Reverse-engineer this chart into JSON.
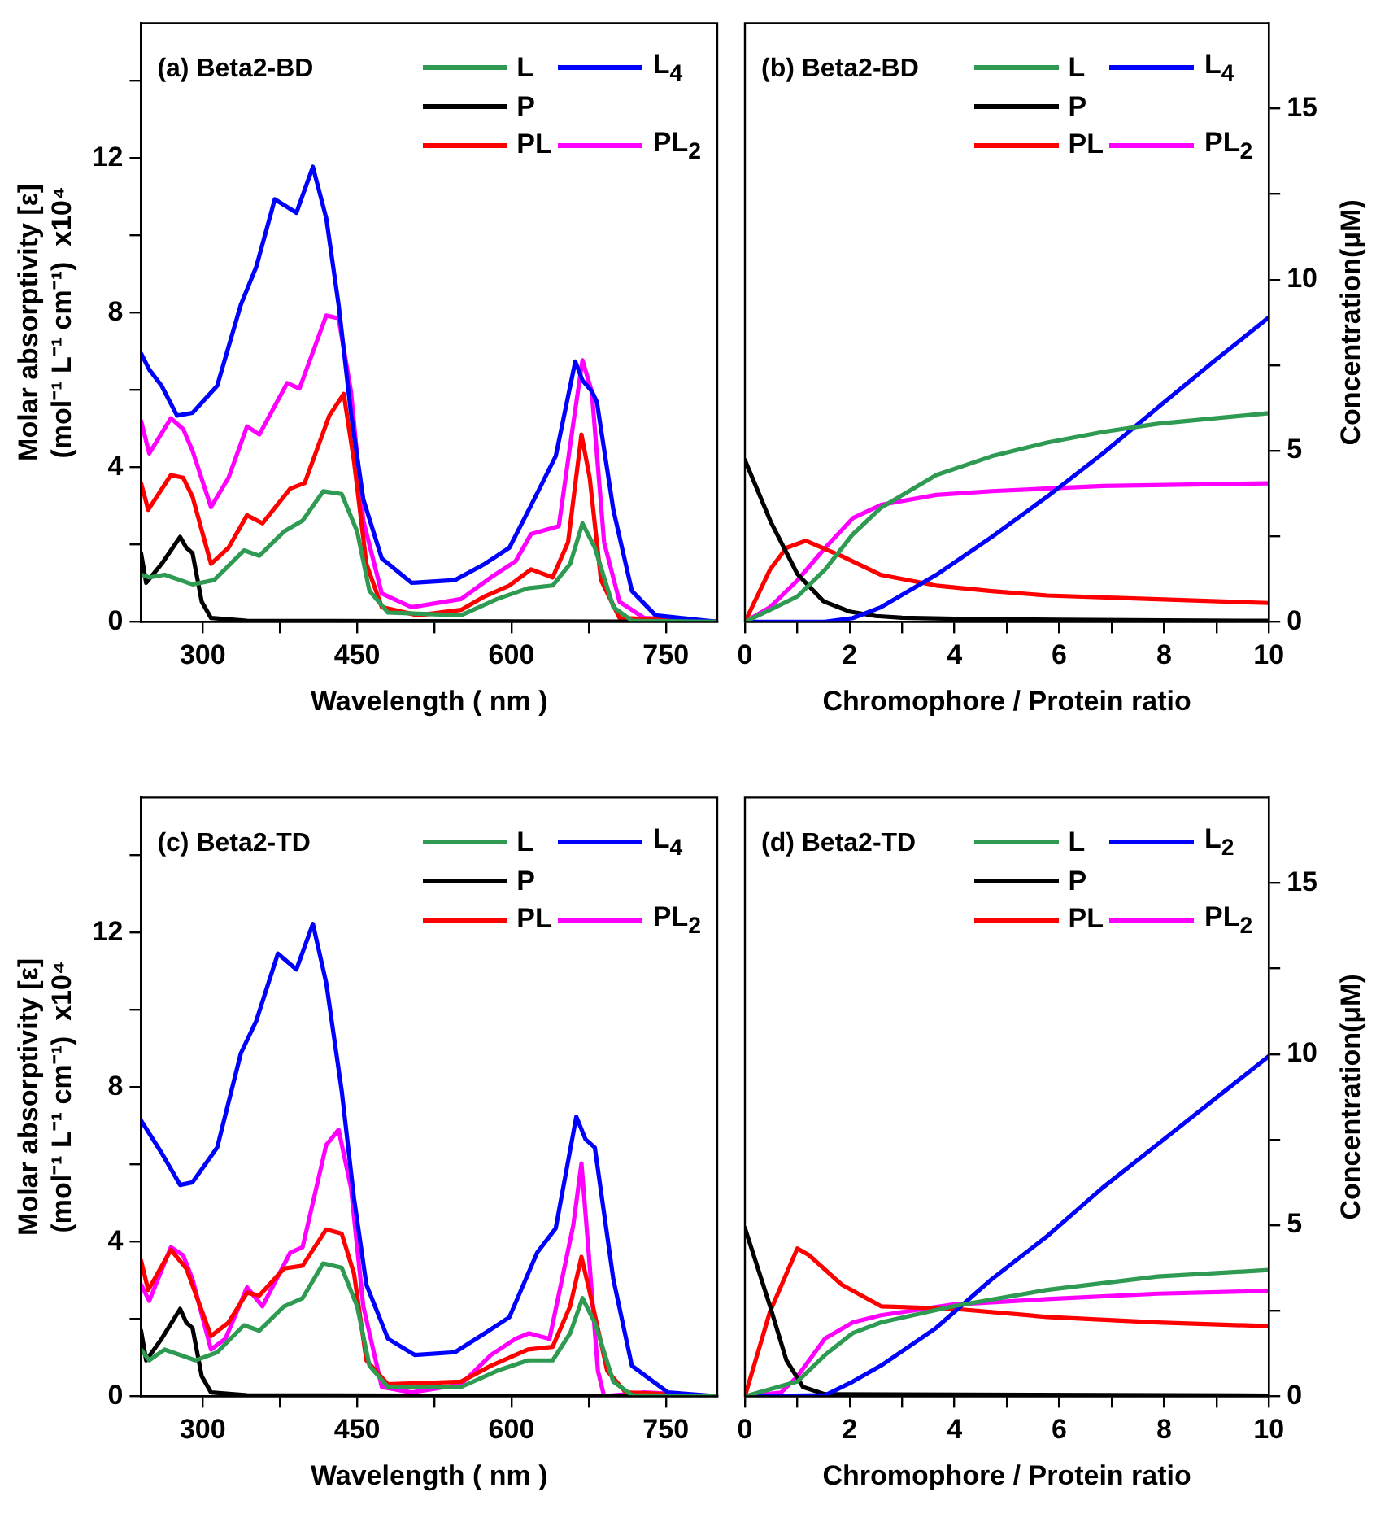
{
  "chart_data": [
    {
      "type": "line",
      "title": "(a) Beta2-BD",
      "xlabel": "Wavelength ( nm )",
      "ylabel": "Molar absorptivity [ε]\n(mol⁻¹ L⁻¹ cm⁻¹)  x10⁴",
      "legend": "top right",
      "xlim": [
        240,
        800
      ],
      "xticks": [
        300,
        {
          "value": 375,
          "label": null
        },
        450,
        {
          "value": 525,
          "label": null
        },
        600,
        {
          "value": 675,
          "label": null
        },
        750
      ],
      "ylim": [
        0,
        15.5
      ],
      "yticks": [
        0,
        {
          "value": 2,
          "label": null
        },
        4,
        {
          "value": 6,
          "label": null
        },
        8,
        {
          "value": 10,
          "label": null
        },
        12,
        {
          "value": 14,
          "label": null
        }
      ],
      "series": [
        {
          "name": "L",
          "color": "#2e9a52",
          "x": [
            240,
            248,
            263,
            290,
            311,
            340,
            355,
            379,
            397,
            417,
            435,
            450,
            462,
            480,
            551,
            586,
            616,
            640,
            657,
            669,
            681,
            699,
            717,
            800
          ],
          "values": [
            1.22,
            1.15,
            1.22,
            0.97,
            1.08,
            1.85,
            1.71,
            2.34,
            2.62,
            3.38,
            3.31,
            2.34,
            0.8,
            0.24,
            0.17,
            0.59,
            0.87,
            0.94,
            1.5,
            2.55,
            1.92,
            0.38,
            0.03,
            0
          ]
        },
        {
          "name": "L$_{4}$",
          "color": "#0000ff",
          "x": [
            240,
            248,
            260,
            275,
            290,
            314,
            337,
            352,
            370,
            391,
            407,
            420,
            432,
            444,
            456,
            474,
            503,
            545,
            574,
            598,
            622,
            643,
            662,
            669,
            678,
            683,
            699,
            717,
            740,
            800
          ],
          "values": [
            6.95,
            6.53,
            6.11,
            5.34,
            5.41,
            6.11,
            8.21,
            9.19,
            10.94,
            10.59,
            11.78,
            10.45,
            8.21,
            5.41,
            3.17,
            1.64,
            1.01,
            1.08,
            1.5,
            1.92,
            3.17,
            4.29,
            6.74,
            6.25,
            5.97,
            5.69,
            2.9,
            0.8,
            0.17,
            0
          ]
        },
        {
          "name": "P",
          "color": "#000000",
          "x": [
            240,
            245,
            260,
            278,
            284,
            290,
            299,
            308,
            343,
            800
          ],
          "values": [
            1.78,
            1.01,
            1.5,
            2.2,
            1.92,
            1.78,
            0.52,
            0.1,
            0.03,
            0
          ]
        },
        {
          "name": "PL",
          "color": "#ff0000",
          "x": [
            240,
            247,
            269,
            281,
            290,
            308,
            325,
            343,
            358,
            385,
            399,
            423,
            437,
            447,
            459,
            474,
            509,
            551,
            574,
            598,
            619,
            640,
            655,
            668,
            676,
            687,
            705,
            800
          ],
          "values": [
            3.59,
            2.9,
            3.8,
            3.73,
            3.24,
            1.5,
            1.92,
            2.76,
            2.55,
            3.45,
            3.59,
            5.34,
            5.9,
            4.15,
            1.5,
            0.38,
            0.17,
            0.31,
            0.66,
            0.94,
            1.36,
            1.15,
            2.06,
            4.85,
            3.73,
            1.08,
            0.1,
            0
          ]
        },
        {
          "name": "PL$_{2}$",
          "color": "#ff00ff",
          "x": [
            240,
            248,
            269,
            281,
            290,
            308,
            325,
            343,
            355,
            382,
            394,
            420,
            432,
            444,
            456,
            474,
            503,
            551,
            580,
            604,
            619,
            646,
            660,
            669,
            678,
            690,
            705,
            729,
            800
          ],
          "values": [
            5.2,
            4.36,
            5.27,
            4.99,
            4.43,
            2.97,
            3.73,
            5.06,
            4.85,
            6.18,
            6.04,
            7.93,
            7.86,
            5.97,
            2.62,
            0.73,
            0.38,
            0.59,
            1.15,
            1.57,
            2.27,
            2.48,
            5.13,
            6.77,
            5.97,
            2.06,
            0.52,
            0.1,
            0
          ]
        }
      ]
    },
    {
      "type": "line",
      "title": "(b) Beta2-BD",
      "xlabel": "Chromophore / Protein ratio",
      "y2label": "Concentration(μM)",
      "legend": "top right",
      "xlim": [
        0,
        10
      ],
      "xticks": [
        0,
        {
          "value": 1,
          "label": null
        },
        2,
        {
          "value": 3,
          "label": null
        },
        4,
        {
          "value": 5,
          "label": null
        },
        6,
        {
          "value": 7,
          "label": null
        },
        8,
        {
          "value": 9,
          "label": null
        },
        10
      ],
      "y2lim": [
        0,
        17.5
      ],
      "y2ticks": [
        0,
        {
          "value": 2.5,
          "label": null
        },
        5,
        {
          "value": 7.5,
          "label": null
        },
        10,
        {
          "value": 12.5,
          "label": null
        },
        15
      ],
      "series": [
        {
          "name": "L",
          "color": "#2e9a52",
          "axis": "y2",
          "x": [
            0,
            0.48,
            1,
            1.53,
            2.06,
            2.6,
            3.65,
            4.71,
            5.77,
            6.83,
            7.88,
            10
          ],
          "values": [
            0,
            0.35,
            0.74,
            1.53,
            2.56,
            3.34,
            4.29,
            4.84,
            5.24,
            5.55,
            5.79,
            6.1
          ]
        },
        {
          "name": "L$_{4}$",
          "color": "#0000ff",
          "axis": "y2",
          "x": [
            0,
            1.53,
            2.06,
            2.6,
            3.65,
            4.71,
            5.77,
            6.83,
            7.88,
            8.94,
            10
          ],
          "values": [
            0,
            0,
            0.11,
            0.43,
            1.37,
            2.48,
            3.66,
            4.92,
            6.26,
            7.6,
            8.9
          ]
        },
        {
          "name": "P",
          "color": "#000000",
          "axis": "y2",
          "x": [
            0,
            0.5,
            1,
            1.5,
            2,
            2.5,
            3,
            4,
            6,
            8,
            10
          ],
          "values": [
            4.73,
            2.9,
            1.4,
            0.6,
            0.3,
            0.17,
            0.12,
            0.09,
            0.06,
            0.04,
            0.03
          ]
        },
        {
          "name": "PL",
          "color": "#ff0000",
          "axis": "y2",
          "x": [
            0,
            0.48,
            0.79,
            1.16,
            1.85,
            2.6,
            3.65,
            4.71,
            5.77,
            7.88,
            10
          ],
          "values": [
            0,
            1.53,
            2.16,
            2.37,
            1.92,
            1.37,
            1.06,
            0.9,
            0.77,
            0.66,
            0.55
          ]
        },
        {
          "name": "PL$_{2}$",
          "color": "#ff00ff",
          "axis": "y2",
          "x": [
            0,
            0.48,
            1,
            1.53,
            2.06,
            2.6,
            3.65,
            4.71,
            6.83,
            10
          ],
          "values": [
            0,
            0.43,
            1.21,
            2.16,
            3.03,
            3.42,
            3.71,
            3.82,
            3.97,
            4.05
          ]
        }
      ]
    },
    {
      "type": "line",
      "title": "(c) Beta2-TD",
      "xlabel": "Wavelength ( nm )",
      "ylabel": "Molar absorptivity [ε]\n(mol⁻¹ L⁻¹ cm⁻¹)  x10⁴",
      "legend": "top right",
      "xlim": [
        240,
        800
      ],
      "xticks": [
        300,
        {
          "value": 375,
          "label": null
        },
        450,
        {
          "value": 525,
          "label": null
        },
        600,
        {
          "value": 675,
          "label": null
        },
        750
      ],
      "ylim": [
        0,
        15.5
      ],
      "yticks": [
        0,
        {
          "value": 2,
          "label": null
        },
        4,
        {
          "value": 6,
          "label": null
        },
        8,
        {
          "value": 10,
          "label": null
        },
        12,
        {
          "value": 14,
          "label": null
        }
      ],
      "series": [
        {
          "name": "L",
          "color": "#2e9a52",
          "x": [
            240,
            248,
            263,
            293,
            314,
            340,
            355,
            379,
            397,
            417,
            435,
            450,
            462,
            480,
            551,
            586,
            616,
            640,
            657,
            669,
            681,
            699,
            717,
            800
          ],
          "values": [
            1.21,
            0.93,
            1.21,
            0.93,
            1.14,
            1.84,
            1.7,
            2.33,
            2.54,
            3.44,
            3.33,
            2.33,
            0.79,
            0.24,
            0.24,
            0.66,
            0.93,
            0.93,
            1.63,
            2.54,
            1.91,
            0.38,
            0.03,
            0
          ]
        },
        {
          "name": "L$_{4}$",
          "color": "#0000ff",
          "x": [
            240,
            260,
            278,
            290,
            314,
            337,
            352,
            373,
            391,
            407,
            420,
            435,
            447,
            459,
            480,
            506,
            545,
            574,
            598,
            625,
            643,
            663,
            672,
            681,
            699,
            717,
            752,
            800
          ],
          "values": [
            7.14,
            6.3,
            5.47,
            5.54,
            6.44,
            8.88,
            9.72,
            11.46,
            11.05,
            12.23,
            10.7,
            7.91,
            5.12,
            2.89,
            1.49,
            1.07,
            1.14,
            1.63,
            2.05,
            3.72,
            4.35,
            7.24,
            6.65,
            6.44,
            3.03,
            0.79,
            0.1,
            0
          ]
        },
        {
          "name": "P",
          "color": "#000000",
          "x": [
            240,
            245,
            260,
            278,
            284,
            290,
            299,
            308,
            343,
            800
          ],
          "values": [
            1.7,
            0.93,
            1.49,
            2.26,
            1.91,
            1.77,
            0.52,
            0.1,
            0.03,
            0
          ]
        },
        {
          "name": "PL",
          "color": "#ff0000",
          "x": [
            240,
            247,
            269,
            284,
            308,
            325,
            343,
            355,
            379,
            397,
            420,
            435,
            447,
            459,
            480,
            551,
            580,
            616,
            640,
            657,
            668,
            678,
            693,
            711,
            800
          ],
          "values": [
            3.51,
            2.75,
            3.79,
            3.31,
            1.56,
            1.91,
            2.68,
            2.61,
            3.31,
            3.38,
            4.32,
            4.21,
            3.17,
            0.93,
            0.31,
            0.38,
            0.79,
            1.21,
            1.28,
            2.33,
            3.61,
            2.47,
            0.66,
            0.1,
            0
          ]
        },
        {
          "name": "PL$_{2}$",
          "color": "#ff00ff",
          "x": [
            240,
            248,
            269,
            281,
            290,
            308,
            322,
            343,
            358,
            385,
            397,
            420,
            432,
            444,
            456,
            474,
            503,
            551,
            580,
            604,
            617,
            637,
            660,
            668,
            675,
            684,
            690,
            729,
            800
          ],
          "values": [
            2.89,
            2.47,
            3.86,
            3.65,
            3.03,
            1.21,
            1.49,
            2.82,
            2.33,
            3.72,
            3.86,
            6.51,
            6.9,
            5.4,
            2.33,
            0.24,
            0.1,
            0.31,
            1.07,
            1.49,
            1.63,
            1.49,
            4.42,
            6.03,
            3.72,
            0.66,
            0,
            0.1,
            0
          ]
        }
      ]
    },
    {
      "type": "line",
      "title": "(d) Beta2-TD",
      "xlabel": "Chromophore / Protein ratio",
      "y2label": "Concentration(μM)",
      "legend": "top right",
      "xlim": [
        0,
        10
      ],
      "xticks": [
        0,
        {
          "value": 1,
          "label": null
        },
        2,
        {
          "value": 3,
          "label": null
        },
        4,
        {
          "value": 5,
          "label": null
        },
        6,
        {
          "value": 7,
          "label": null
        },
        8,
        {
          "value": 9,
          "label": null
        },
        10
      ],
      "y2lim": [
        0,
        17.5
      ],
      "y2ticks": [
        0,
        {
          "value": 2.5,
          "label": null
        },
        5,
        {
          "value": 7.5,
          "label": null
        },
        10,
        {
          "value": 12.5,
          "label": null
        },
        15
      ],
      "series": [
        {
          "name": "L",
          "color": "#2e9a52",
          "axis": "y2",
          "x": [
            0,
            1,
            1.53,
            2.06,
            2.6,
            3.97,
            5.77,
            7.88,
            10
          ],
          "values": [
            0,
            0.43,
            1.21,
            1.85,
            2.16,
            2.63,
            3.11,
            3.5,
            3.69
          ]
        },
        {
          "name": "L$_{2}$",
          "color": "#0000ff",
          "axis": "y2",
          "x": [
            0,
            1.53,
            2.06,
            2.6,
            3.65,
            4.71,
            5.77,
            6.83,
            7.88,
            10
          ],
          "values": [
            0,
            0.03,
            0.43,
            0.9,
            2,
            3.42,
            4.68,
            6.1,
            7.37,
            9.94
          ]
        },
        {
          "name": "P",
          "color": "#000000",
          "axis": "y2",
          "x": [
            0,
            0.48,
            0.79,
            1.11,
            1.53,
            10
          ],
          "values": [
            4.92,
            2.63,
            1.06,
            0.27,
            0.06,
            0.02
          ]
        },
        {
          "name": "PL",
          "color": "#ff0000",
          "axis": "y2",
          "x": [
            0,
            0.48,
            1,
            1.22,
            1.85,
            2.6,
            3.97,
            5.77,
            7.88,
            10
          ],
          "values": [
            0,
            2.48,
            4.32,
            4.13,
            3.26,
            2.63,
            2.56,
            2.32,
            2.16,
            2.05
          ]
        },
        {
          "name": "PL$_{2}$",
          "color": "#ff00ff",
          "axis": "y2",
          "x": [
            0,
            0.69,
            1,
            1.53,
            2.06,
            2.6,
            3.97,
            5.77,
            7.88,
            10
          ],
          "values": [
            0,
            0.11,
            0.58,
            1.69,
            2.16,
            2.37,
            2.68,
            2.84,
            3,
            3.08
          ]
        }
      ]
    }
  ]
}
